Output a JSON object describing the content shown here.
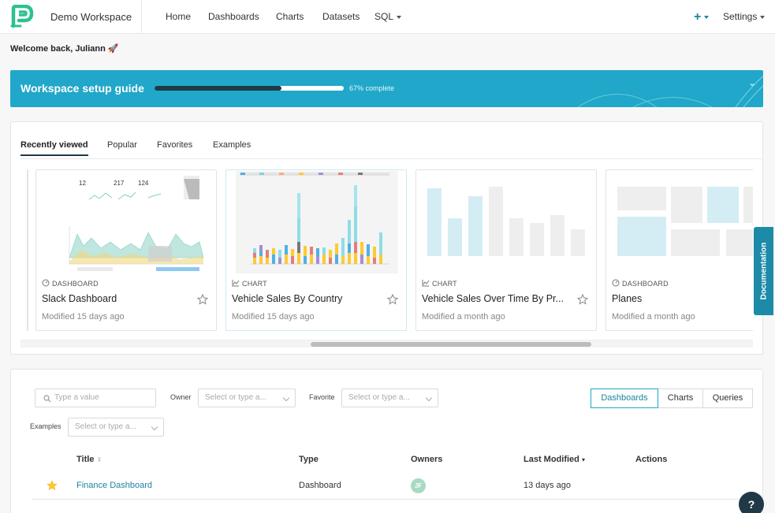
{
  "navbar": {
    "workspace": "Demo Workspace",
    "items": [
      "Home",
      "Dashboards",
      "Charts",
      "Datasets",
      "SQL"
    ],
    "settings": "Settings",
    "brand_color": "#20a7c9"
  },
  "welcome": "Welcome back, Juliann 🚀",
  "setup_guide": {
    "title": "Workspace setup guide",
    "progress_percent": 67,
    "progress_text": "67% complete"
  },
  "recent": {
    "tabs": [
      "Recently viewed",
      "Popular",
      "Favorites",
      "Examples"
    ],
    "active_tab": "Recently viewed",
    "cards": [
      {
        "type": "DASHBOARD",
        "icon": "dashboard-icon",
        "title": "Slack Dashboard",
        "modified": "Modified 15 days ago"
      },
      {
        "type": "CHART",
        "icon": "line-chart-icon",
        "title": "Vehicle Sales By Country",
        "modified": "Modified 15 days ago"
      },
      {
        "type": "CHART",
        "icon": "line-chart-icon",
        "title": "Vehicle Sales Over Time By Pr...",
        "modified": "Modified a month ago"
      },
      {
        "type": "DASHBOARD",
        "icon": "dashboard-icon",
        "title": "Planes",
        "modified": "Modified a month ago"
      }
    ]
  },
  "documentation_tab": "Documentation",
  "list": {
    "search_placeholder": "Type a value",
    "owner_label": "Owner",
    "owner_placeholder": "Select or type a...",
    "favorite_label": "Favorite",
    "favorite_placeholder": "Select or type a...",
    "examples_label": "Examples",
    "examples_placeholder": "Select or type a...",
    "segments": [
      "Dashboards",
      "Charts",
      "Queries"
    ],
    "active_segment": "Dashboards",
    "columns": [
      "Title",
      "Type",
      "Owners",
      "Last Modified",
      "Actions"
    ],
    "rows": [
      {
        "favorite": true,
        "title": "Finance Dashboard",
        "type": "Dashboard",
        "owner_initials": "JF",
        "last_modified": "13 days ago"
      }
    ]
  },
  "help_icon": "help-icon"
}
